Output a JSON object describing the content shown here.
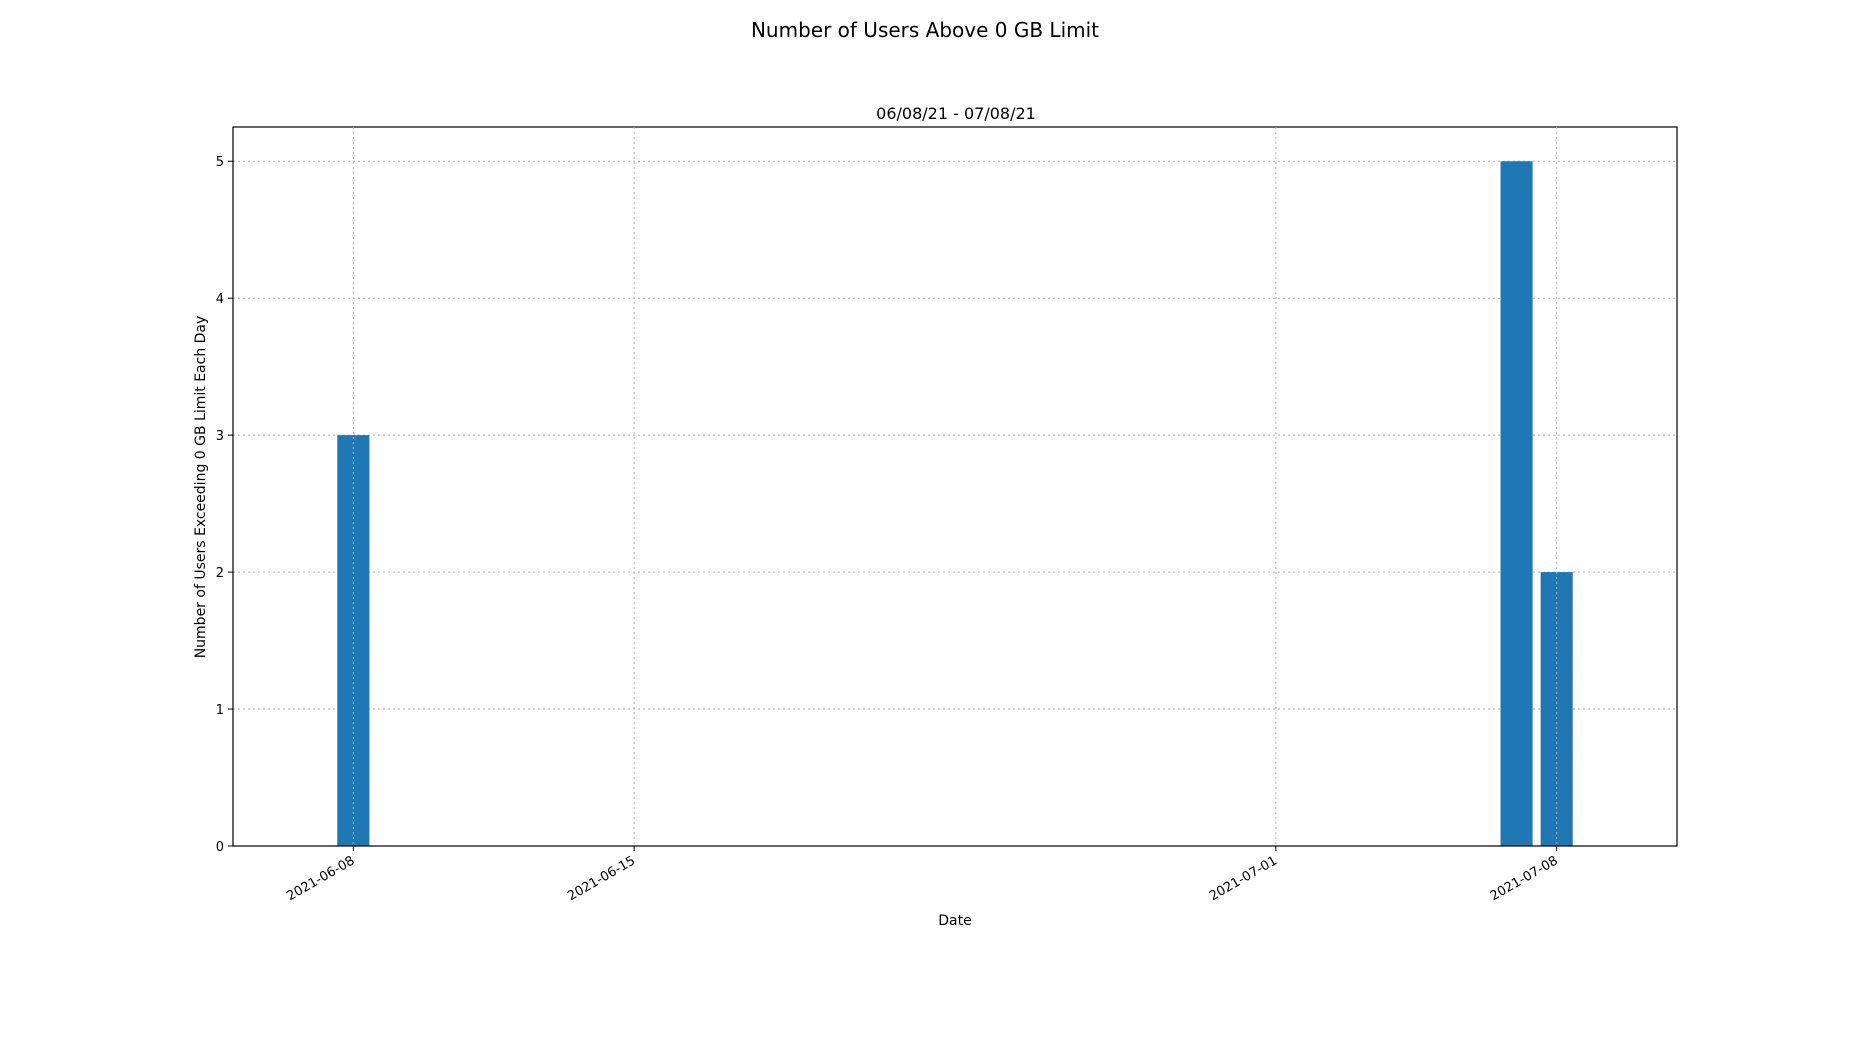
{
  "chart_data": {
    "type": "bar",
    "title": "Number of Users Above 0 GB Limit",
    "subtitle": "06/08/21 - 07/08/21",
    "xlabel": "Date",
    "ylabel": "Number of Users Exceeding 0 GB Limit Each Day",
    "x_range": [
      "2021-06-05",
      "2021-07-11"
    ],
    "ylim": [
      0,
      5.25
    ],
    "x_ticks": [
      "2021-06-08",
      "2021-06-15",
      "2021-07-01",
      "2021-07-08"
    ],
    "y_ticks": [
      0,
      1,
      2,
      3,
      4,
      5
    ],
    "grid": true,
    "color": "#1f77b4",
    "bars": [
      {
        "date": "2021-06-08",
        "value": 3
      },
      {
        "date": "2021-07-07",
        "value": 5
      },
      {
        "date": "2021-07-08",
        "value": 2
      }
    ]
  }
}
